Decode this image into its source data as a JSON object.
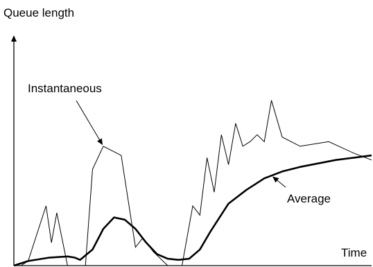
{
  "chart_data": {
    "type": "line",
    "title": "",
    "xlabel": "Time",
    "ylabel": "Queue length",
    "grid": false,
    "legend": "none",
    "xlim": [
      0,
      100
    ],
    "ylim": [
      0,
      100
    ],
    "series": [
      {
        "name": "Instantaneous",
        "color": "#000000",
        "x": [
          0,
          2,
          4,
          9,
          10.5,
          12,
          15,
          20,
          22,
          25,
          30,
          34,
          36,
          39,
          43,
          47,
          50,
          52,
          54,
          56,
          58,
          60,
          62,
          64,
          66,
          68,
          70,
          72,
          75,
          80,
          88,
          95,
          100
        ],
        "y": [
          0,
          0,
          2,
          26,
          10,
          23,
          0,
          0,
          42,
          52,
          48,
          8,
          12,
          6,
          0,
          0,
          26,
          22,
          47,
          32,
          57,
          44,
          62,
          52,
          54,
          57,
          54,
          72,
          56,
          52,
          54,
          49,
          46
        ]
      },
      {
        "name": "Average",
        "color": "#000000",
        "x": [
          0,
          4,
          10,
          15,
          17,
          18.5,
          22,
          25,
          28,
          31,
          34,
          37,
          40,
          43,
          46,
          49,
          52,
          55,
          60,
          65,
          70,
          75,
          80,
          85,
          90,
          95,
          100
        ],
        "y": [
          0,
          2,
          3.5,
          4,
          3.5,
          2.5,
          7,
          16,
          21,
          20,
          16,
          10,
          5,
          3,
          2.5,
          3,
          7,
          15,
          27,
          33,
          38,
          41,
          43,
          44.5,
          46,
          47,
          48
        ]
      }
    ],
    "annotations": [
      {
        "label": "Instantaneous",
        "target_series": "Instantaneous",
        "at_x": 25
      },
      {
        "label": "Average",
        "target_series": "Average",
        "at_x": 72
      }
    ]
  }
}
